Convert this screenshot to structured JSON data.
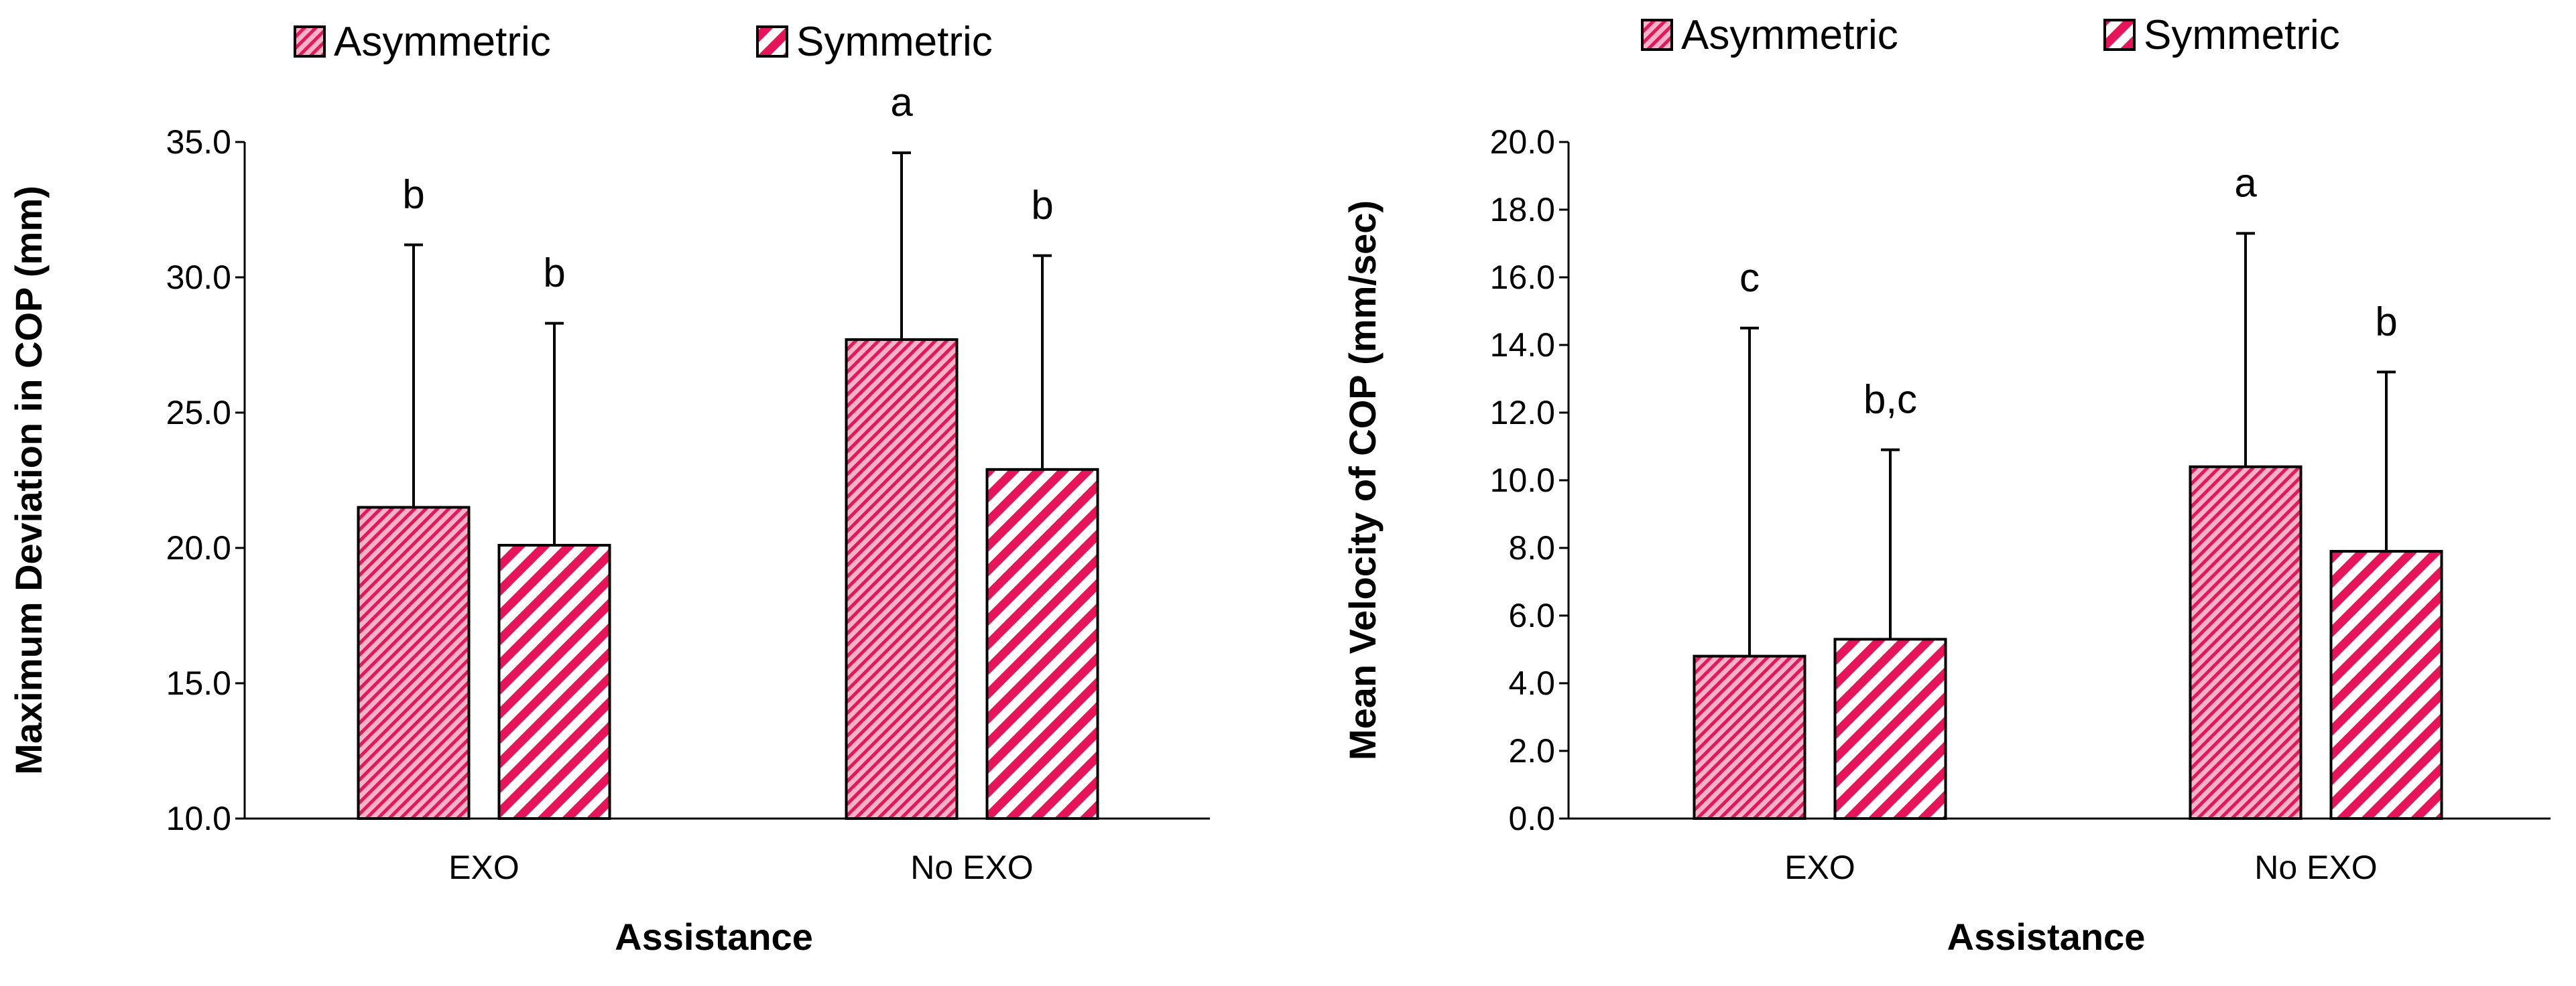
{
  "colors": {
    "bar_fill_light": "#f8b2c8",
    "bar_fill_dark": "#e2185d",
    "sym_fill_light": "#ffffff",
    "sym_fill_dark": "#e8145a",
    "outline": "#000000"
  },
  "chart_data": [
    {
      "type": "bar",
      "title": "",
      "xlabel": "Assistance",
      "ylabel": "Maximum Deviation in COP (mm)",
      "ylim": [
        10.0,
        35.0
      ],
      "yticks": [
        "10.0",
        "15.0",
        "20.0",
        "25.0",
        "30.0",
        "35.0"
      ],
      "categories": [
        "EXO",
        "No EXO"
      ],
      "legend": [
        "Asymmetric",
        "Symmetric"
      ],
      "legend_position": "top",
      "series": [
        {
          "name": "Asymmetric",
          "values": [
            21.5,
            27.7
          ],
          "error": [
            9.7,
            6.9
          ],
          "labels": [
            "b",
            "a"
          ]
        },
        {
          "name": "Symmetric",
          "values": [
            20.1,
            22.9
          ],
          "error": [
            8.2,
            7.9
          ],
          "labels": [
            "b",
            "b"
          ]
        }
      ]
    },
    {
      "type": "bar",
      "title": "",
      "xlabel": "Assistance",
      "ylabel": "Mean Velocity of COP (mm/sec)",
      "ylim": [
        0.0,
        20.0
      ],
      "yticks": [
        "0.0",
        "2.0",
        "4.0",
        "6.0",
        "8.0",
        "10.0",
        "12.0",
        "14.0",
        "16.0",
        "18.0",
        "20.0"
      ],
      "categories": [
        "EXO",
        "No EXO"
      ],
      "legend": [
        "Asymmetric",
        "Symmetric"
      ],
      "legend_position": "top",
      "series": [
        {
          "name": "Asymmetric",
          "values": [
            4.8,
            10.4
          ],
          "error": [
            9.7,
            6.9
          ],
          "labels": [
            "c",
            "a"
          ]
        },
        {
          "name": "Symmetric",
          "values": [
            5.3,
            7.9
          ],
          "error": [
            5.6,
            5.3
          ],
          "labels": [
            "b,c",
            "b"
          ]
        }
      ]
    }
  ]
}
